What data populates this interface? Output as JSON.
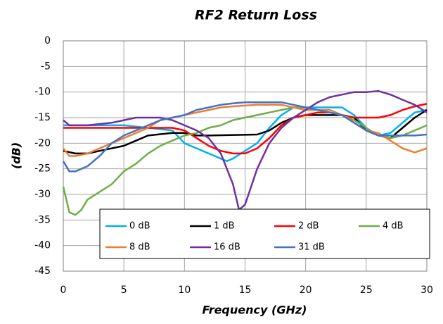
{
  "chart_data": {
    "type": "line",
    "title": "RF2 Return Loss",
    "xlabel": "Frequency (GHz)",
    "ylabel": "(dB)",
    "xlim": [
      0,
      30
    ],
    "ylim": [
      -45,
      0
    ],
    "xticks": [
      0,
      5,
      10,
      15,
      20,
      25,
      30
    ],
    "yticks": [
      0,
      -5,
      -10,
      -15,
      -20,
      -25,
      -30,
      -35,
      -40,
      -45
    ],
    "grid": true,
    "legend": "lower center",
    "series": [
      {
        "name": "0 dB",
        "color": "#00b0f0",
        "x": [
          0,
          2,
          5,
          7,
          9,
          10,
          11,
          12.5,
          13.5,
          14,
          15,
          16,
          17,
          18,
          19,
          20,
          22,
          23,
          24,
          25,
          26,
          27,
          28,
          29,
          30
        ],
        "values": [
          -16.5,
          -16.5,
          -16.5,
          -17,
          -17.5,
          -20,
          -21,
          -22.5,
          -23.5,
          -23,
          -21.5,
          -20,
          -17,
          -14.5,
          -13,
          -13,
          -13,
          -13,
          -14.5,
          -17,
          -18.5,
          -18,
          -16,
          -14,
          -13.5
        ]
      },
      {
        "name": "1 dB",
        "color": "#000000",
        "x": [
          0,
          1,
          2,
          3,
          5,
          6,
          7,
          9,
          10,
          11,
          12,
          16,
          17,
          18,
          19,
          20,
          23,
          24,
          25,
          26,
          27,
          28,
          29,
          30
        ],
        "values": [
          -21.5,
          -22,
          -22,
          -21.5,
          -20.5,
          -19.5,
          -18.5,
          -18,
          -18,
          -18.5,
          -18.5,
          -18.3,
          -17.5,
          -16,
          -15,
          -14.5,
          -14.5,
          -15,
          -17.5,
          -18.5,
          -19,
          -17,
          -15,
          -13.5
        ]
      },
      {
        "name": "2 dB",
        "color": "#ff0000",
        "x": [
          0,
          1,
          5,
          9,
          10,
          11,
          12,
          13,
          14,
          15,
          16,
          17,
          18,
          19,
          20,
          21,
          22,
          23,
          24,
          25,
          26,
          27,
          28,
          29,
          30
        ],
        "values": [
          -17,
          -17,
          -17,
          -17,
          -17.5,
          -19,
          -20.5,
          -21.5,
          -22,
          -22,
          -21,
          -19,
          -16.5,
          -15,
          -14.5,
          -14,
          -14,
          -14.5,
          -15,
          -15,
          -15,
          -14.5,
          -13.5,
          -12.8,
          -12.3
        ]
      },
      {
        "name": "4 dB",
        "color": "#70ad47",
        "x": [
          0,
          0.5,
          1,
          1.5,
          2,
          3,
          4,
          5,
          6,
          7,
          8,
          9,
          10,
          11,
          12,
          13,
          14,
          15,
          16,
          17,
          18,
          19,
          20,
          21,
          22,
          23,
          24,
          25,
          26,
          27,
          28,
          29,
          30
        ],
        "values": [
          -28.5,
          -33.5,
          -34,
          -33,
          -31,
          -29.5,
          -28,
          -25.5,
          -24,
          -22,
          -20.5,
          -19.5,
          -18.5,
          -18,
          -17,
          -16.5,
          -15.5,
          -15,
          -14.5,
          -14,
          -13.5,
          -13,
          -13,
          -13.5,
          -14,
          -14.5,
          -15.5,
          -17,
          -18.5,
          -19,
          -18.5,
          -17.5,
          -16.5
        ]
      },
      {
        "name": "8 dB",
        "color": "#ed7d31",
        "x": [
          0,
          0.5,
          1,
          2,
          3,
          4,
          5,
          6,
          7,
          8,
          9,
          10,
          11,
          12,
          13,
          14,
          16,
          18,
          19,
          20,
          22,
          23,
          24,
          25,
          26,
          27,
          28,
          29,
          30
        ],
        "values": [
          -21,
          -22.5,
          -22.5,
          -22,
          -21,
          -20,
          -19,
          -18,
          -17,
          -15.5,
          -15,
          -14.5,
          -14,
          -13.5,
          -13,
          -12.8,
          -12.5,
          -12.5,
          -13,
          -13.5,
          -13.5,
          -14.5,
          -16,
          -17.5,
          -18,
          -19.5,
          -21,
          -21.8,
          -21
        ]
      },
      {
        "name": "16 dB",
        "color": "#7030a0",
        "x": [
          0,
          0.5,
          2,
          4,
          5,
          6,
          8,
          9,
          10,
          11,
          12,
          13,
          14,
          14.5,
          15,
          16,
          17,
          18,
          19,
          20,
          21,
          22,
          23,
          24,
          25,
          26,
          27,
          28,
          29,
          30
        ],
        "values": [
          -15.5,
          -16.5,
          -16.5,
          -16,
          -15.5,
          -15,
          -15,
          -15.5,
          -16.5,
          -17.5,
          -19,
          -22,
          -28,
          -33,
          -32,
          -25,
          -20,
          -17,
          -15,
          -13.5,
          -12,
          -11,
          -10.5,
          -10,
          -10,
          -9.8,
          -10.5,
          -11.5,
          -12.5,
          -14
        ]
      },
      {
        "name": "31 dB",
        "color": "#4472c4",
        "x": [
          0,
          0.5,
          1,
          2,
          3,
          4,
          5,
          6,
          7,
          8,
          9,
          10,
          11,
          12,
          13,
          14,
          15,
          18,
          19,
          20,
          21,
          22,
          23,
          24,
          25,
          26,
          27,
          28,
          29,
          30
        ],
        "values": [
          -23.5,
          -25.5,
          -25.5,
          -24.5,
          -22.5,
          -20,
          -18.5,
          -17.5,
          -16.5,
          -15.5,
          -15,
          -14.5,
          -13.5,
          -13,
          -12.5,
          -12.2,
          -12,
          -12,
          -12.5,
          -13,
          -13.5,
          -14,
          -14.5,
          -16,
          -17.5,
          -18.5,
          -18.5,
          -18.5,
          -18.5,
          -18.3
        ]
      }
    ]
  }
}
